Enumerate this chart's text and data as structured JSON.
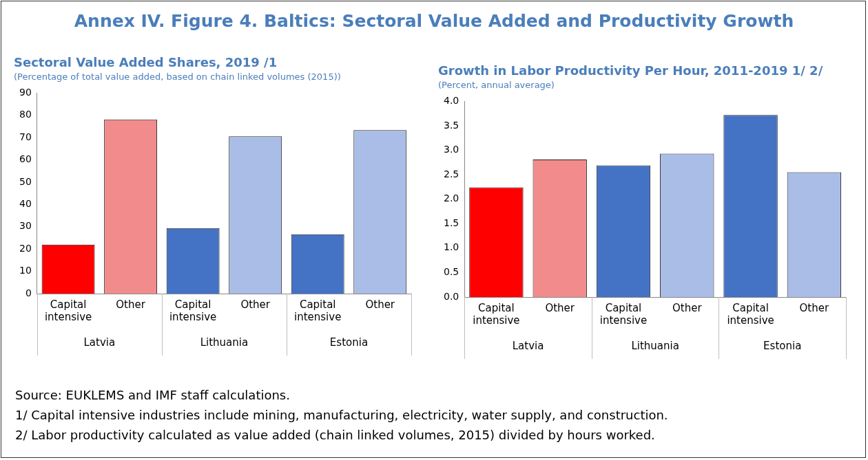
{
  "chart_data": [
    {
      "type": "bar",
      "title": "Sectoral Value Added Shares, 2019 /1",
      "subtitle": "(Percentage of total value added, based on chain linked volumes (2015))",
      "categories": [
        "Capital intensive",
        "Other",
        "Capital intensive",
        "Other",
        "Capital intensive",
        "Other"
      ],
      "values": [
        22,
        78.2,
        29.4,
        70.6,
        26.6,
        73.4
      ],
      "colors": [
        "#ff0000",
        "#f28c8c",
        "#4472c4",
        "#a9bde6",
        "#4472c4",
        "#a9bde6"
      ],
      "ylim": [
        0,
        90
      ],
      "yticks": [
        0,
        10,
        20,
        30,
        40,
        50,
        60,
        70,
        80,
        90
      ],
      "grid": false,
      "legend": false,
      "annotations": [
        "Latvia",
        "Lithuania",
        "Estonia"
      ]
    },
    {
      "type": "bar",
      "title": "Growth in Labor Productivity Per Hour, 2011-2019 1/ 2/",
      "subtitle": "(Percent, annual average)",
      "categories": [
        "Capital intensive",
        "Other",
        "Capital intensive",
        "Other",
        "Capital intensive",
        "Other"
      ],
      "values": [
        2.24,
        2.81,
        2.69,
        2.93,
        3.72,
        2.55
      ],
      "colors": [
        "#ff0000",
        "#f28c8c",
        "#4472c4",
        "#a9bde6",
        "#4472c4",
        "#a9bde6"
      ],
      "ylim": [
        0,
        4
      ],
      "yticks": [
        {
          "value": 0,
          "label": "0.0"
        },
        0.5,
        {
          "value": 1,
          "label": "1.0"
        },
        1.5,
        {
          "value": 2,
          "label": "2.0"
        },
        2.5,
        {
          "value": 3,
          "label": "3.0"
        },
        3.5,
        {
          "value": 4,
          "label": "4.0"
        }
      ],
      "grid": false,
      "legend": false,
      "annotations": [
        "Latvia",
        "Lithuania",
        "Estonia"
      ]
    },
    {
      "type": "other",
      "title": "Annex IV. Figure 4. Baltics: Sectoral Value Added and Productivity Growth",
      "annotations": [
        "Source: EUKLEMS and IMF staff calculations.",
        "1/ Capital intensive industries include mining, manufacturing, electricity, water supply, and construction.",
        "2/ Labor productivity calculated as value added (chain linked volumes, 2015) divided by hours worked."
      ]
    }
  ]
}
